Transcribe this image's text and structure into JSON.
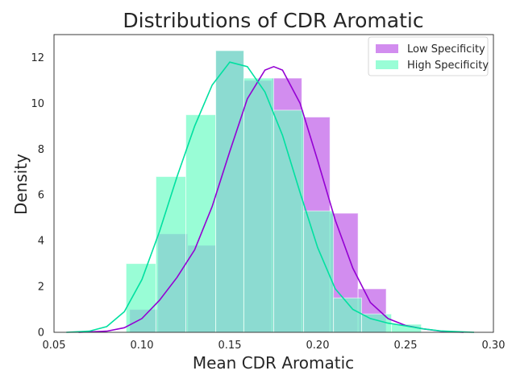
{
  "chart_data": {
    "type": "histogram",
    "title": "Distributions of CDR Aromatic",
    "xlabel": "Mean CDR Aromatic",
    "ylabel": "Density",
    "xlim": [
      0.05,
      0.3
    ],
    "ylim": [
      0,
      13
    ],
    "xticks": [
      "0.05",
      "0.10",
      "0.15",
      "0.20",
      "0.25",
      "0.30"
    ],
    "yticks": [
      "0",
      "2",
      "4",
      "6",
      "8",
      "10",
      "12"
    ],
    "grid": false,
    "legend_position": "top-right",
    "series": [
      {
        "name": "Low Specificity",
        "color": "#bf5ce8",
        "line_color": "#9400d3",
        "bins": [
          {
            "x0": 0.093,
            "x1": 0.109,
            "density": 1.0
          },
          {
            "x0": 0.109,
            "x1": 0.126,
            "density": 4.3
          },
          {
            "x0": 0.126,
            "x1": 0.142,
            "density": 3.8
          },
          {
            "x0": 0.142,
            "x1": 0.158,
            "density": 12.3
          },
          {
            "x0": 0.158,
            "x1": 0.174,
            "density": 11.0
          },
          {
            "x0": 0.174,
            "x1": 0.191,
            "density": 11.1
          },
          {
            "x0": 0.191,
            "x1": 0.207,
            "density": 9.4
          },
          {
            "x0": 0.207,
            "x1": 0.223,
            "density": 5.2
          },
          {
            "x0": 0.223,
            "x1": 0.239,
            "density": 1.9
          }
        ],
        "kde": [
          [
            0.064,
            0.0
          ],
          [
            0.08,
            0.05
          ],
          [
            0.09,
            0.2
          ],
          [
            0.1,
            0.6
          ],
          [
            0.11,
            1.4
          ],
          [
            0.12,
            2.4
          ],
          [
            0.13,
            3.6
          ],
          [
            0.14,
            5.5
          ],
          [
            0.15,
            7.9
          ],
          [
            0.16,
            10.2
          ],
          [
            0.17,
            11.45
          ],
          [
            0.175,
            11.6
          ],
          [
            0.18,
            11.45
          ],
          [
            0.19,
            10.0
          ],
          [
            0.2,
            7.5
          ],
          [
            0.21,
            4.9
          ],
          [
            0.22,
            2.8
          ],
          [
            0.23,
            1.3
          ],
          [
            0.24,
            0.6
          ],
          [
            0.25,
            0.3
          ],
          [
            0.26,
            0.15
          ],
          [
            0.27,
            0.05
          ],
          [
            0.283,
            0.0
          ]
        ]
      },
      {
        "name": "High Specificity",
        "color": "#6dfcc4",
        "line_color": "#00e0a0",
        "bins": [
          {
            "x0": 0.091,
            "x1": 0.108,
            "density": 3.0
          },
          {
            "x0": 0.108,
            "x1": 0.125,
            "density": 6.8
          },
          {
            "x0": 0.125,
            "x1": 0.142,
            "density": 9.5
          },
          {
            "x0": 0.142,
            "x1": 0.158,
            "density": 12.3
          },
          {
            "x0": 0.158,
            "x1": 0.175,
            "density": 11.1
          },
          {
            "x0": 0.175,
            "x1": 0.192,
            "density": 9.7
          },
          {
            "x0": 0.192,
            "x1": 0.209,
            "density": 5.3
          },
          {
            "x0": 0.209,
            "x1": 0.225,
            "density": 1.5
          },
          {
            "x0": 0.225,
            "x1": 0.242,
            "density": 0.8
          },
          {
            "x0": 0.242,
            "x1": 0.259,
            "density": 0.35
          }
        ],
        "kde": [
          [
            0.057,
            0.0
          ],
          [
            0.07,
            0.05
          ],
          [
            0.08,
            0.25
          ],
          [
            0.09,
            0.9
          ],
          [
            0.1,
            2.3
          ],
          [
            0.11,
            4.4
          ],
          [
            0.12,
            6.8
          ],
          [
            0.13,
            9.0
          ],
          [
            0.14,
            10.8
          ],
          [
            0.15,
            11.8
          ],
          [
            0.16,
            11.6
          ],
          [
            0.17,
            10.5
          ],
          [
            0.18,
            8.6
          ],
          [
            0.19,
            6.1
          ],
          [
            0.2,
            3.7
          ],
          [
            0.21,
            1.9
          ],
          [
            0.22,
            1.0
          ],
          [
            0.23,
            0.6
          ],
          [
            0.24,
            0.4
          ],
          [
            0.25,
            0.28
          ],
          [
            0.26,
            0.15
          ],
          [
            0.27,
            0.06
          ],
          [
            0.289,
            0.0
          ]
        ]
      }
    ]
  }
}
